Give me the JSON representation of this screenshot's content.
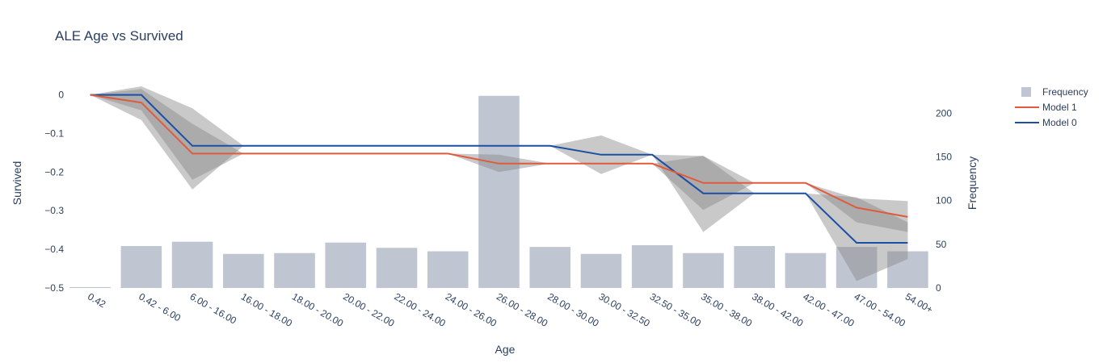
{
  "chart_data": {
    "type": "line",
    "title": "ALE Age vs Survived",
    "xlabel": "Age",
    "ylabel": "Survived",
    "y2label": "Frequency",
    "ylim": [
      -0.5,
      0.02
    ],
    "y2lim": [
      0,
      230
    ],
    "yticks": [
      0,
      -0.1,
      -0.2,
      -0.3,
      -0.4,
      -0.5
    ],
    "yticklabels": [
      "0",
      "−0.1",
      "−0.2",
      "−0.3",
      "−0.4",
      "−0.5"
    ],
    "y2ticks": [
      0,
      50,
      100,
      150,
      200
    ],
    "y2ticklabels": [
      "0",
      "50",
      "100",
      "150",
      "200"
    ],
    "categories": [
      "0.42",
      "0.42 - 6.00",
      "6.00 - 16.00",
      "16.00 - 18.00",
      "18.00 - 20.00",
      "20.00 - 22.00",
      "22.00 - 24.00",
      "24.00 - 26.00",
      "26.00 - 28.00",
      "28.00 - 30.00",
      "30.00 - 32.50",
      "32.50 - 35.00",
      "35.00 - 38.00",
      "38.00 - 42.00",
      "42.00 - 47.00",
      "47.00 - 54.00",
      "54.00+"
    ],
    "frequency": [
      1,
      48,
      53,
      39,
      40,
      52,
      46,
      42,
      220,
      47,
      39,
      49,
      40,
      48,
      40,
      47,
      42
    ],
    "series": [
      {
        "name": "Model 1",
        "color": "#e05a3c",
        "values": [
          0,
          -0.02,
          -0.152,
          -0.152,
          -0.152,
          -0.152,
          -0.152,
          -0.152,
          -0.178,
          -0.178,
          -0.178,
          -0.178,
          -0.228,
          -0.228,
          -0.228,
          -0.292,
          -0.316
        ],
        "band_lower": [
          0,
          -0.04,
          -0.22,
          -0.152,
          -0.152,
          -0.152,
          -0.152,
          -0.152,
          -0.2,
          -0.178,
          -0.178,
          -0.178,
          -0.298,
          -0.228,
          -0.228,
          -0.33,
          -0.355
        ],
        "band_upper": [
          0,
          0.015,
          -0.075,
          -0.152,
          -0.152,
          -0.152,
          -0.152,
          -0.152,
          -0.155,
          -0.178,
          -0.178,
          -0.178,
          -0.158,
          -0.228,
          -0.228,
          -0.268,
          -0.275
        ]
      },
      {
        "name": "Model 0",
        "color": "#1a4fa3",
        "values": [
          0,
          0,
          -0.132,
          -0.132,
          -0.132,
          -0.132,
          -0.132,
          -0.132,
          -0.132,
          -0.132,
          -0.155,
          -0.155,
          -0.255,
          -0.255,
          -0.255,
          -0.383,
          -0.383
        ],
        "band_lower": [
          0,
          -0.065,
          -0.245,
          -0.132,
          -0.132,
          -0.132,
          -0.132,
          -0.132,
          -0.132,
          -0.132,
          -0.205,
          -0.155,
          -0.355,
          -0.255,
          -0.255,
          -0.482,
          -0.425
        ],
        "band_upper": [
          0,
          0.022,
          -0.035,
          -0.132,
          -0.132,
          -0.132,
          -0.132,
          -0.132,
          -0.132,
          -0.132,
          -0.105,
          -0.155,
          -0.158,
          -0.255,
          -0.255,
          -0.265,
          -0.33
        ]
      }
    ],
    "legend": {
      "placement": "top-right",
      "entries": [
        "Frequency",
        "Model 1",
        "Model 0"
      ]
    },
    "colors": {
      "frequency_bar": "#c0c6d1",
      "band": "#888888",
      "text": "#2a3f5f"
    }
  }
}
